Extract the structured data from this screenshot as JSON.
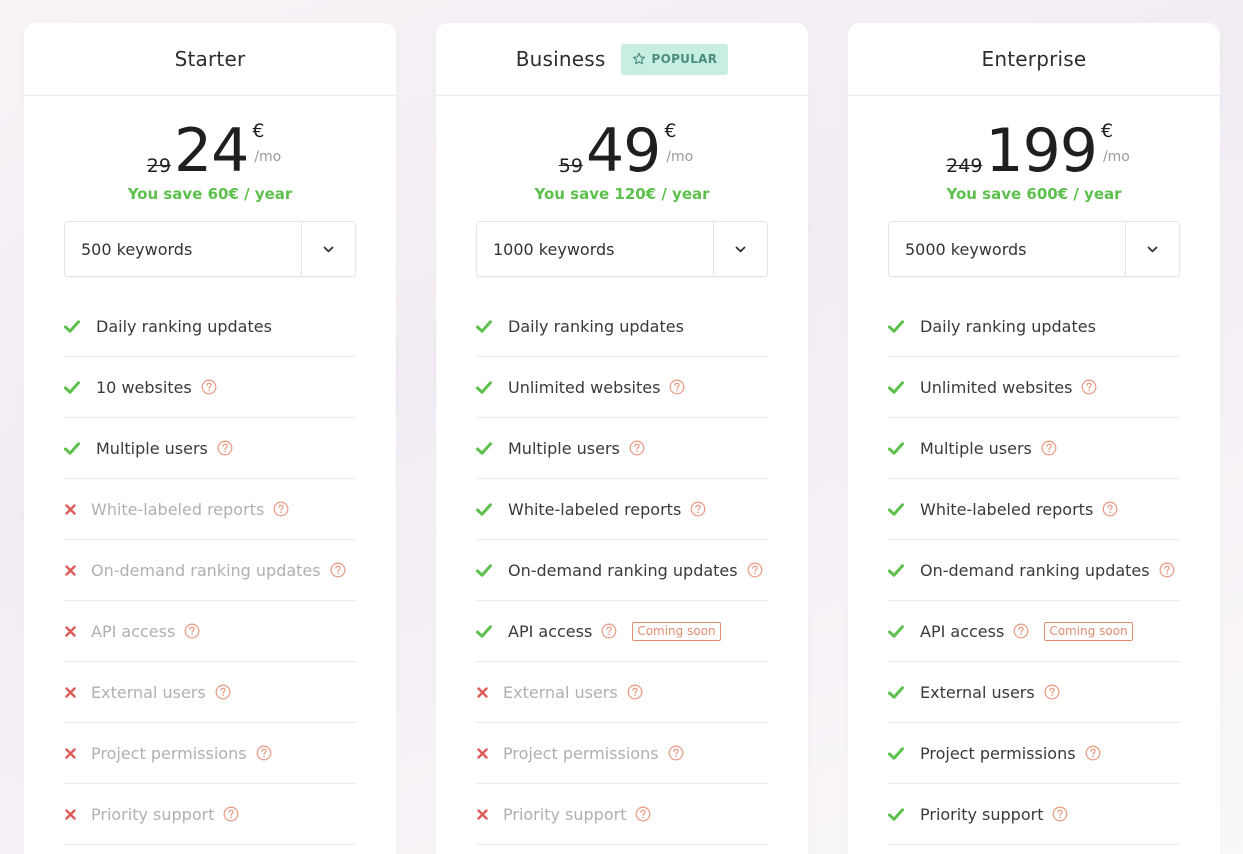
{
  "plans": [
    {
      "name": "Starter",
      "popular": false,
      "old_price": "29",
      "price": "24",
      "currency": "€",
      "period": "/mo",
      "savings": "You save 60€ / year",
      "keywords": "500 keywords",
      "features": [
        {
          "label": "Daily ranking updates",
          "included": true,
          "help": false,
          "badge": ""
        },
        {
          "label": "10 websites",
          "included": true,
          "help": true,
          "badge": ""
        },
        {
          "label": "Multiple users",
          "included": true,
          "help": true,
          "badge": ""
        },
        {
          "label": "White-labeled reports",
          "included": false,
          "help": true,
          "badge": ""
        },
        {
          "label": "On-demand ranking updates",
          "included": false,
          "help": true,
          "badge": ""
        },
        {
          "label": "API access",
          "included": false,
          "help": true,
          "badge": ""
        },
        {
          "label": "External users",
          "included": false,
          "help": true,
          "badge": ""
        },
        {
          "label": "Project permissions",
          "included": false,
          "help": true,
          "badge": ""
        },
        {
          "label": "Priority support",
          "included": false,
          "help": true,
          "badge": ""
        }
      ]
    },
    {
      "name": "Business",
      "popular": true,
      "popular_label": "POPULAR",
      "old_price": "59",
      "price": "49",
      "currency": "€",
      "period": "/mo",
      "savings": "You save 120€ / year",
      "keywords": "1000 keywords",
      "features": [
        {
          "label": "Daily ranking updates",
          "included": true,
          "help": false,
          "badge": ""
        },
        {
          "label": "Unlimited websites",
          "included": true,
          "help": true,
          "badge": ""
        },
        {
          "label": "Multiple users",
          "included": true,
          "help": true,
          "badge": ""
        },
        {
          "label": "White-labeled reports",
          "included": true,
          "help": true,
          "badge": ""
        },
        {
          "label": "On-demand ranking updates",
          "included": true,
          "help": true,
          "badge": ""
        },
        {
          "label": "API access",
          "included": true,
          "help": true,
          "badge": "Coming soon"
        },
        {
          "label": "External users",
          "included": false,
          "help": true,
          "badge": ""
        },
        {
          "label": "Project permissions",
          "included": false,
          "help": true,
          "badge": ""
        },
        {
          "label": "Priority support",
          "included": false,
          "help": true,
          "badge": ""
        }
      ]
    },
    {
      "name": "Enterprise",
      "popular": false,
      "old_price": "249",
      "price": "199",
      "currency": "€",
      "period": "/mo",
      "savings": "You save 600€ / year",
      "keywords": "5000 keywords",
      "features": [
        {
          "label": "Daily ranking updates",
          "included": true,
          "help": false,
          "badge": ""
        },
        {
          "label": "Unlimited websites",
          "included": true,
          "help": true,
          "badge": ""
        },
        {
          "label": "Multiple users",
          "included": true,
          "help": true,
          "badge": ""
        },
        {
          "label": "White-labeled reports",
          "included": true,
          "help": true,
          "badge": ""
        },
        {
          "label": "On-demand ranking updates",
          "included": true,
          "help": true,
          "badge": ""
        },
        {
          "label": "API access",
          "included": true,
          "help": true,
          "badge": "Coming soon"
        },
        {
          "label": "External users",
          "included": true,
          "help": true,
          "badge": ""
        },
        {
          "label": "Project permissions",
          "included": true,
          "help": true,
          "badge": ""
        },
        {
          "label": "Priority support",
          "included": true,
          "help": true,
          "badge": ""
        }
      ]
    }
  ],
  "colors": {
    "check": "#5dc04d",
    "cross": "#e05a5a",
    "help": "#e8a08a",
    "savings": "#5dc04d",
    "popular_bg": "#c8eee3"
  },
  "icons": {
    "included": "check-icon",
    "excluded": "cross-icon",
    "help": "help-circle-icon",
    "dropdown": "chevron-down-icon",
    "popular": "star-icon"
  }
}
